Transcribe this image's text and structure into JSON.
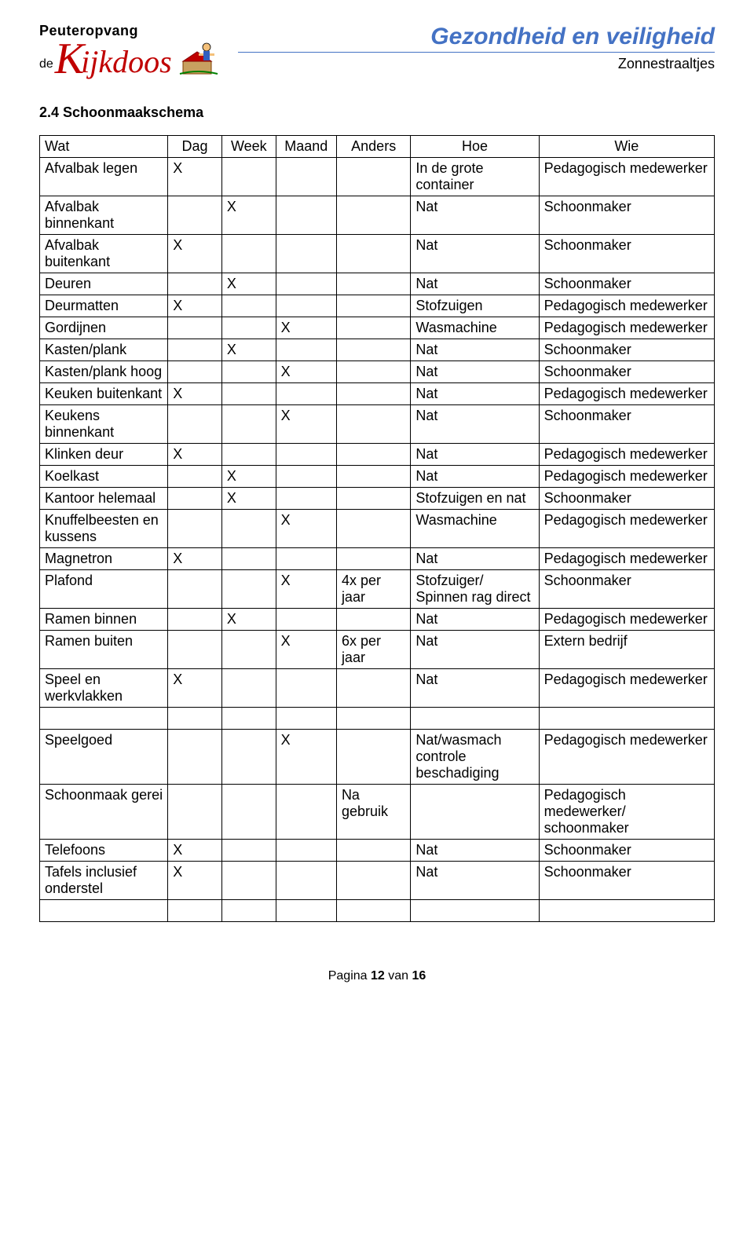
{
  "logo": {
    "top": "Peuteropvang",
    "de": "de",
    "initial": "K",
    "rest": "ijkdoos"
  },
  "header": {
    "title": "Gezondheid en veiligheid",
    "subtitle": "Zonnestraaltjes"
  },
  "section_title": "2.4 Schoonmaakschema",
  "columns": [
    "Wat",
    "Dag",
    "Week",
    "Maand",
    "Anders",
    "Hoe",
    "Wie"
  ],
  "rows": [
    {
      "wat": "Afvalbak legen",
      "dag": "X",
      "week": "",
      "maand": "",
      "anders": "",
      "hoe": "In de grote container",
      "wie": "Pedagogisch medewerker"
    },
    {
      "wat": "Afvalbak binnenkant",
      "dag": "",
      "week": "X",
      "maand": "",
      "anders": "",
      "hoe": "Nat",
      "wie": "Schoonmaker"
    },
    {
      "wat": "Afvalbak buitenkant",
      "dag": "X",
      "week": "",
      "maand": "",
      "anders": "",
      "hoe": "Nat",
      "wie": "Schoonmaker"
    },
    {
      "wat": "Deuren",
      "dag": "",
      "week": "X",
      "maand": "",
      "anders": "",
      "hoe": "Nat",
      "wie": "Schoonmaker"
    },
    {
      "wat": "Deurmatten",
      "dag": "X",
      "week": "",
      "maand": "",
      "anders": "",
      "hoe": "Stofzuigen",
      "wie": "Pedagogisch medewerker"
    },
    {
      "wat": "Gordijnen",
      "dag": "",
      "week": "",
      "maand": "X",
      "anders": "",
      "hoe": "Wasmachine",
      "wie": "Pedagogisch medewerker"
    },
    {
      "wat": "Kasten/plank",
      "dag": "",
      "week": "X",
      "maand": "",
      "anders": "",
      "hoe": "Nat",
      "wie": "Schoonmaker"
    },
    {
      "wat": "Kasten/plank hoog",
      "dag": "",
      "week": "",
      "maand": "X",
      "anders": "",
      "hoe": "Nat",
      "wie": "Schoonmaker"
    },
    {
      "wat": "Keuken buitenkant",
      "dag": "X",
      "week": "",
      "maand": "",
      "anders": "",
      "hoe": "Nat",
      "wie": "Pedagogisch medewerker"
    },
    {
      "wat": "Keukens binnenkant",
      "dag": "",
      "week": "",
      "maand": "X",
      "anders": "",
      "hoe": "Nat",
      "wie": "Schoonmaker"
    },
    {
      "wat": "Klinken deur",
      "dag": "X",
      "week": "",
      "maand": "",
      "anders": "",
      "hoe": "Nat",
      "wie": "Pedagogisch medewerker"
    },
    {
      "wat": "Koelkast",
      "dag": "",
      "week": "X",
      "maand": "",
      "anders": "",
      "hoe": "Nat",
      "wie": "Pedagogisch medewerker"
    },
    {
      "wat": "Kantoor helemaal",
      "dag": "",
      "week": "X",
      "maand": "",
      "anders": "",
      "hoe": "Stofzuigen en nat",
      "wie": "Schoonmaker"
    },
    {
      "wat": "Knuffelbeesten en kussens",
      "dag": "",
      "week": "",
      "maand": "X",
      "anders": "",
      "hoe": "Wasmachine",
      "wie": "Pedagogisch medewerker"
    },
    {
      "wat": "Magnetron",
      "dag": "X",
      "week": "",
      "maand": "",
      "anders": "",
      "hoe": "Nat",
      "wie": "Pedagogisch medewerker"
    },
    {
      "wat": "Plafond",
      "dag": "",
      "week": "",
      "maand": "X",
      "anders": "4x per jaar",
      "hoe": "Stofzuiger/ Spinnen rag direct",
      "wie": "Schoonmaker"
    },
    {
      "wat": "Ramen binnen",
      "dag": "",
      "week": "X",
      "maand": "",
      "anders": "",
      "hoe": "Nat",
      "wie": "Pedagogisch medewerker"
    },
    {
      "wat": "Ramen buiten",
      "dag": "",
      "week": "",
      "maand": "X",
      "anders": "6x per jaar",
      "hoe": "Nat",
      "wie": "Extern bedrijf"
    },
    {
      "wat": "Speel en werkvlakken",
      "dag": "X",
      "week": "",
      "maand": "",
      "anders": "",
      "hoe": "Nat",
      "wie": "Pedagogisch medewerker"
    },
    {
      "wat": "",
      "dag": "",
      "week": "",
      "maand": "",
      "anders": "",
      "hoe": "",
      "wie": ""
    },
    {
      "wat": "Speelgoed",
      "dag": "",
      "week": "",
      "maand": "X",
      "anders": "",
      "hoe": "Nat/wasmach controle beschadiging",
      "wie": "Pedagogisch medewerker"
    },
    {
      "wat": "Schoonmaak gerei",
      "dag": "",
      "week": "",
      "maand": "",
      "anders": "Na gebruik",
      "hoe": "",
      "wie": "Pedagogisch medewerker/ schoonmaker"
    },
    {
      "wat": "Telefoons",
      "dag": "X",
      "week": "",
      "maand": "",
      "anders": "",
      "hoe": "Nat",
      "wie": "Schoonmaker"
    },
    {
      "wat": "Tafels inclusief onderstel",
      "dag": "X",
      "week": "",
      "maand": "",
      "anders": "",
      "hoe": "Nat",
      "wie": "Schoonmaker"
    },
    {
      "wat": "",
      "dag": "",
      "week": "",
      "maand": "",
      "anders": "",
      "hoe": "",
      "wie": ""
    }
  ],
  "footer": {
    "prefix": "Pagina ",
    "page": "12",
    "middle": " van ",
    "total": "16"
  },
  "colors": {
    "title": "#4472c4",
    "logo_red": "#c00000",
    "border": "#000000",
    "text": "#000000",
    "background": "#ffffff"
  }
}
